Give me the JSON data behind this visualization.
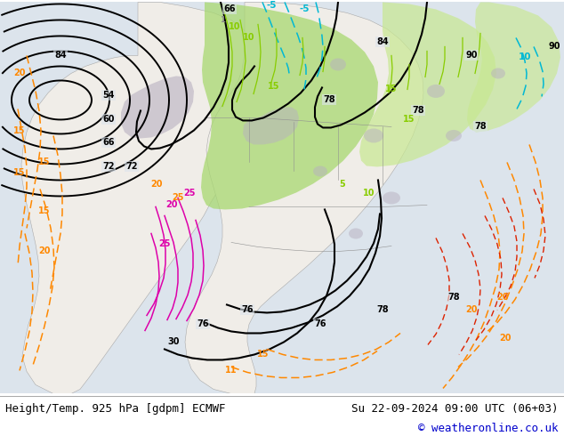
{
  "title_left": "Height/Temp. 925 hPa [gdpm] ECMWF",
  "title_right": "Su 22-09-2024 09:00 UTC (06+03)",
  "copyright": "© weatheronline.co.uk",
  "footer_bg": "#ffffff",
  "footer_text_color": "#000000",
  "copyright_color": "#0000cc",
  "title_fontsize": 9,
  "copyright_fontsize": 9,
  "fig_width": 6.34,
  "fig_height": 4.9,
  "map_bg": "#e8e8e8",
  "ocean_color": "#dce4ec",
  "land_color": "#f0ede8",
  "green_fill": "#a8d870",
  "green_fill2": "#c8e890",
  "gray_fill": "#b8b0c0",
  "contour_black_lw": 1.5,
  "contour_orange_lw": 1.2,
  "contour_cyan_lw": 1.0,
  "contour_green_lw": 1.0,
  "contour_magenta_lw": 1.2,
  "contour_red_lw": 1.0
}
